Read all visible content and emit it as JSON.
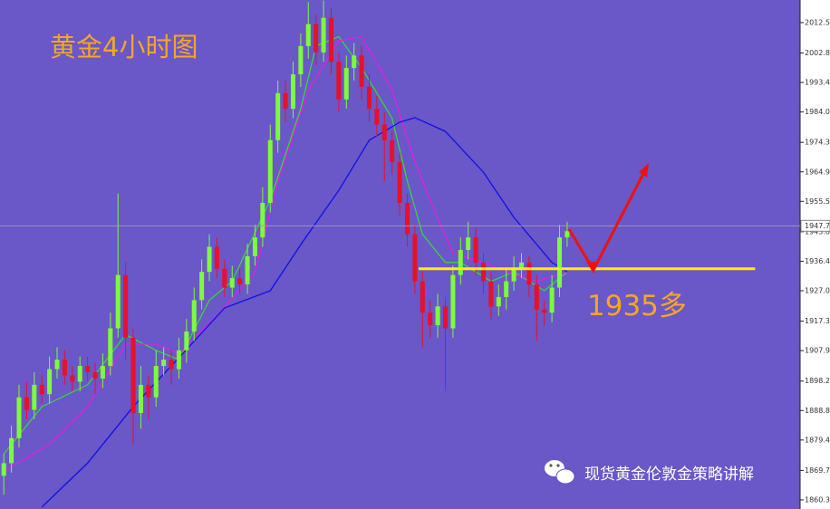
{
  "chart_data": {
    "type": "candlestick",
    "title": "黄金4小时图",
    "annotation": "1935多",
    "watermark": "现货黄金伦敦金策略讲解",
    "up_color": "#7cfc3c",
    "down_color": "#e8102a",
    "xlim": [
      -0.5,
      104.6
    ],
    "ylim": [
      1857.4,
      2019.7
    ],
    "yticks": [
      2012.5,
      2002.8,
      1993.4,
      {
        "value": 1984,
        "label": "1984.0"
      },
      1974.3,
      1964.9,
      1955.5,
      1945.8,
      1936.4,
      {
        "value": 1927,
        "label": "1927.0"
      },
      1917.3,
      1907.9,
      1898.2,
      1888.8,
      1879.4,
      1869.7,
      1860.3
    ],
    "last_price": 1947.7,
    "support": {
      "value": 1934,
      "from": 54.5,
      "to": 98.7,
      "color": "#ffef00"
    },
    "candles": {
      "open": [
        1868,
        1872,
        1880,
        1893,
        1889,
        1897,
        1894,
        1902,
        1905,
        1900,
        1898,
        1903,
        1901,
        1899,
        1903,
        1915,
        1932,
        1912,
        1888,
        1897,
        1893,
        1903,
        1905,
        1902,
        1908,
        1914,
        1924,
        1933,
        1941,
        1934,
        1928,
        1931,
        1929,
        1938,
        1944,
        1955,
        1975,
        1990,
        1985,
        1996,
        2005,
        2012,
        2003,
        2014,
        2000,
        1988,
        1998,
        2002,
        1992,
        1985,
        1980,
        1975,
        1968,
        1955,
        1945,
        1930,
        1920,
        1916,
        1922,
        1915,
        1932,
        1940,
        1944,
        1936,
        1930,
        1922,
        1925,
        1930,
        1934,
        1936,
        1929,
        1921,
        1920,
        1928,
        1944
      ],
      "high": [
        1875,
        1884,
        1897,
        1898,
        1901,
        1900,
        1906,
        1909,
        1908,
        1903,
        1906,
        1906,
        1904,
        1907,
        1920,
        1958,
        1936,
        1915,
        1903,
        1900,
        1908,
        1909,
        1908,
        1912,
        1918,
        1928,
        1937,
        1945,
        1944,
        1937,
        1935,
        1934,
        1942,
        1948,
        1960,
        1980,
        1994,
        1994,
        2000,
        2009,
        2019,
        2015,
        2019.5,
        2017,
        2003,
        2002,
        2006,
        2005,
        1996,
        1989,
        1984,
        1978,
        1971,
        1958,
        1948,
        1933,
        1924,
        1926,
        1925,
        1935,
        1944,
        1949,
        1947,
        1939,
        1933,
        1929,
        1934,
        1938,
        1939,
        1938,
        1932,
        1924,
        1932,
        1948,
        1949
      ],
      "low": [
        1862,
        1869,
        1877,
        1886,
        1886,
        1891,
        1891,
        1899,
        1897,
        1895,
        1895,
        1898,
        1894,
        1896,
        1900,
        1912,
        1905,
        1878,
        1883,
        1886,
        1890,
        1900,
        1897,
        1899,
        1904,
        1911,
        1921,
        1930,
        1931,
        1925,
        1925,
        1926,
        1926,
        1935,
        1941,
        1952,
        1971,
        1981,
        1982,
        1992,
        2001,
        1999,
        2000,
        1996,
        1984,
        1985,
        1994,
        1988,
        1981,
        1976,
        1962,
        1964,
        1951,
        1941,
        1926,
        1909,
        1912,
        1912,
        1895,
        1912,
        1929,
        1937,
        1932,
        1926,
        1918,
        1919,
        1921,
        1927,
        1931,
        1925,
        1911,
        1916,
        1917,
        1925,
        1941
      ],
      "close": [
        1872,
        1880,
        1893,
        1889,
        1897,
        1894,
        1902,
        1905,
        1900,
        1898,
        1903,
        1901,
        1899,
        1903,
        1915,
        1932,
        1912,
        1888,
        1897,
        1893,
        1903,
        1905,
        1902,
        1908,
        1914,
        1924,
        1933,
        1941,
        1934,
        1928,
        1931,
        1929,
        1938,
        1944,
        1955,
        1975,
        1990,
        1985,
        1996,
        2005,
        2012,
        2003,
        2014,
        2000,
        1988,
        1998,
        2002,
        1992,
        1985,
        1980,
        1975,
        1968,
        1955,
        1945,
        1930,
        1920,
        1916,
        1922,
        1915,
        1932,
        1940,
        1944,
        1936,
        1930,
        1922,
        1925,
        1930,
        1934,
        1936,
        1929,
        1921,
        1920,
        1928,
        1944,
        1946
      ]
    },
    "series": [
      {
        "color": "#39d539",
        "x": [
          0,
          5,
          11,
          16,
          20,
          23,
          27,
          30,
          35,
          39,
          41,
          44,
          47,
          51,
          53,
          55,
          58,
          60,
          64,
          67,
          71,
          74
        ],
        "values": [
          1875,
          1890,
          1897,
          1913,
          1908,
          1905,
          1924,
          1930,
          1956,
          1985,
          2005,
          2008,
          1998,
          1982,
          1962,
          1945,
          1936,
          1936,
          1930,
          1933,
          1927,
          1933
        ]
      },
      {
        "color": "#e020e0",
        "x": [
          0,
          6,
          11,
          16,
          20,
          23,
          28,
          33,
          36,
          40,
          44,
          47,
          51,
          54,
          57,
          59,
          63,
          66,
          70,
          74
        ],
        "values": [
          1869.5,
          1878,
          1890,
          1910,
          1910,
          1907,
          1919,
          1933,
          1962,
          1991,
          2006.7,
          2008,
          1991,
          1968,
          1950,
          1939,
          1936,
          1933,
          1930,
          1933
        ]
      },
      {
        "color": "#1010e8",
        "x": [
          5,
          11,
          17,
          23,
          29,
          35,
          39,
          44,
          48,
          52,
          54,
          58,
          63,
          67,
          72,
          74
        ],
        "values": [
          1858,
          1872,
          1890,
          1905.6,
          1921.5,
          1927,
          1941.7,
          1959,
          1975,
          1980.7,
          1982.2,
          1977.8,
          1964.8,
          1950.4,
          1936,
          1933
        ]
      }
    ]
  }
}
